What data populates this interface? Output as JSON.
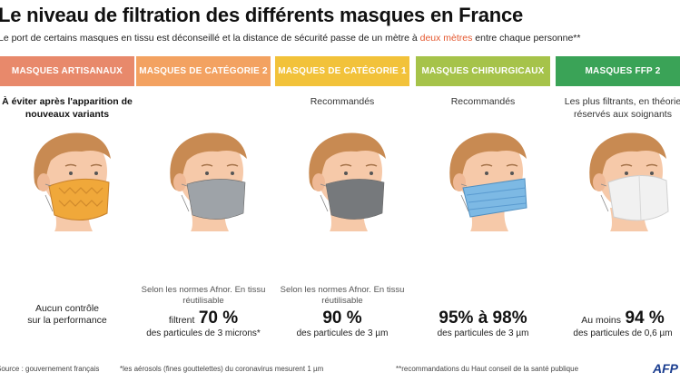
{
  "title": "Le niveau de filtration des différents masques en France",
  "subtitle": {
    "before": "Le port de certains masques en tissu est déconseillé et la distance de sécurité passe de un mètre à ",
    "highlight": "deux mètres",
    "after": " entre chaque personne**"
  },
  "columns": [
    {
      "header": "MASQUES ARTISANAUX",
      "color": "#e8896b",
      "note": "À éviter après l'apparition de nouveaux variants",
      "note_bold": true,
      "mask": "artisanal-pattern-mask-icon",
      "mask_color": "#f0a83a",
      "desc": "",
      "perf_line1": "Aucun contrôle",
      "perf_line2": "sur la performance",
      "perf_big": "",
      "perf_small": ""
    },
    {
      "header": "MASQUES DE CATÉGORIE 2",
      "color": "#f3a261",
      "note": "",
      "note_bold": false,
      "mask": "gray-cloth-mask-icon",
      "mask_color": "#9ea3a8",
      "desc": "Selon les normes Afnor. En tissu réutilisable",
      "perf_line1": "filtrent",
      "perf_big": "70 %",
      "perf_small": "des particules de 3 microns*"
    },
    {
      "header": "MASQUES DE CATÉGORIE 1",
      "color": "#f2c23a",
      "note": "Recommandés",
      "note_bold": false,
      "mask": "dark-gray-cloth-mask-icon",
      "mask_color": "#76797c",
      "desc": "Selon les normes Afnor. En tissu réutilisable",
      "perf_line1": "",
      "perf_big": "90 %",
      "perf_small": "des particules de 3 µm"
    },
    {
      "header": "MASQUES CHIRURGICAUX",
      "color": "#a6c34a",
      "note": "Recommandés",
      "note_bold": false,
      "mask": "surgical-mask-icon",
      "mask_color": "#7db9e4",
      "desc": "",
      "perf_line1": "",
      "perf_big": "95% à 98%",
      "perf_small": "des particules de 3 µm"
    },
    {
      "header": "MASQUES FFP 2",
      "color": "#3aa357",
      "note": "Les plus filtrants, en théorie réservés aux soignants",
      "note_bold": false,
      "mask": "ffp2-mask-icon",
      "mask_color": "#f1f1f1",
      "desc": "",
      "perf_line1": "Au moins",
      "perf_big": "94 %",
      "perf_small": "des particules de 0,6 µm"
    }
  ],
  "footer": {
    "source": "Source : gouvernement français",
    "note1": "*les aérosols (fines gouttelettes) du coronavirus mesurent 1 µm",
    "note2": "**recommandations du Haut conseil de la santé publique",
    "logo": "AFP"
  }
}
